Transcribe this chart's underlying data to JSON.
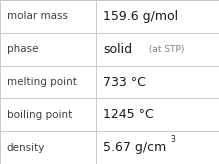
{
  "rows": [
    {
      "label": "molar mass",
      "value_main": "159.6 g/mol",
      "value_suffix": null,
      "superscript": null
    },
    {
      "label": "phase",
      "value_main": "solid",
      "value_suffix": " (at STP)",
      "superscript": null
    },
    {
      "label": "melting point",
      "value_main": "733 °C",
      "value_suffix": null,
      "superscript": null
    },
    {
      "label": "boiling point",
      "value_main": "1245 °C",
      "value_suffix": null,
      "superscript": null
    },
    {
      "label": "density",
      "value_main": "5.67 g/cm",
      "value_suffix": null,
      "superscript": "3"
    }
  ],
  "bg_color": "#ffffff",
  "grid_color": "#c8c8c8",
  "label_color": "#404040",
  "value_color": "#1a1a1a",
  "suffix_color": "#808080",
  "col_split": 0.44,
  "label_fontsize": 7.5,
  "value_fontsize": 9.0,
  "suffix_fontsize": 6.5,
  "super_fontsize": 5.5
}
